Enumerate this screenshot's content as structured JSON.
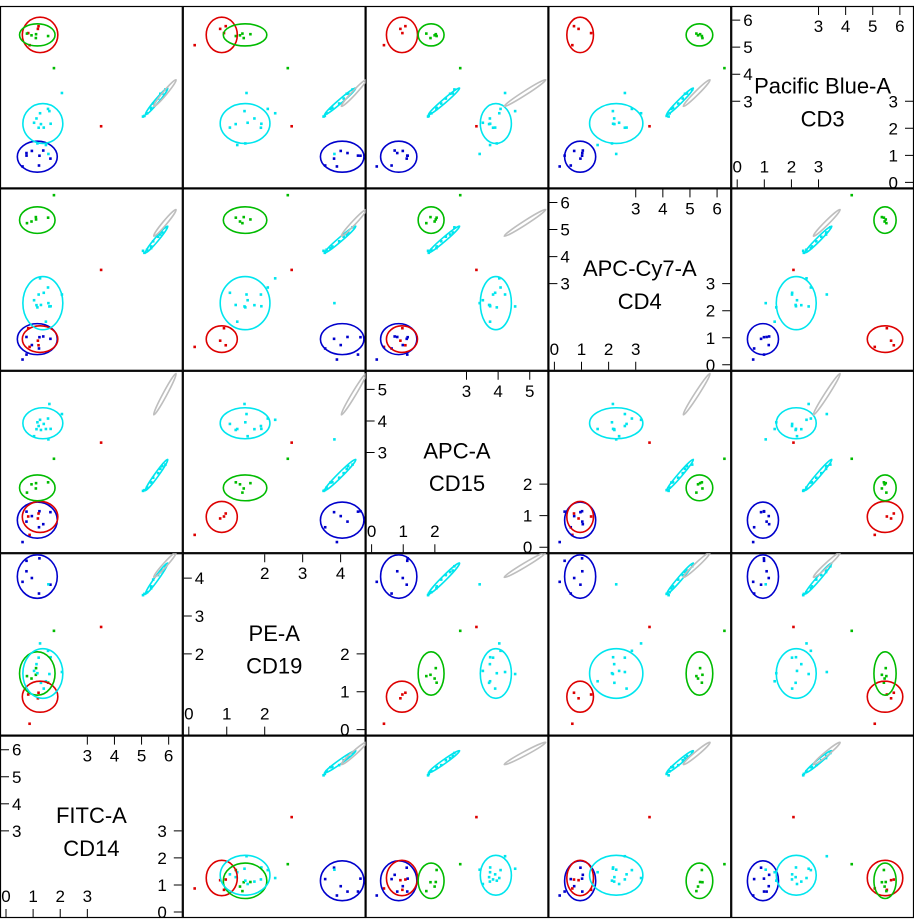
{
  "chart_data": {
    "type": "scatter",
    "subtype": "scatterplot-matrix",
    "variables": [
      {
        "channel": "FITC-A",
        "marker": "CD14",
        "range": [
          0,
          6.3
        ],
        "ticks": [
          0,
          1,
          2,
          3,
          4,
          5,
          6
        ]
      },
      {
        "channel": "PE-A",
        "marker": "CD19",
        "range": [
          0,
          4.5
        ],
        "ticks": [
          0,
          1,
          2,
          3,
          4
        ]
      },
      {
        "channel": "APC-A",
        "marker": "CD15",
        "range": [
          0,
          5.4
        ],
        "ticks": [
          0,
          1,
          2,
          3,
          4,
          5
        ]
      },
      {
        "channel": "APC-Cy7-A",
        "marker": "CD4",
        "range": [
          0,
          6.3
        ],
        "ticks": [
          0,
          1,
          2,
          3,
          4,
          5,
          6
        ]
      },
      {
        "channel": "Pacific Blue-A",
        "marker": "CD3",
        "range": [
          0,
          6.3
        ],
        "ticks": [
          0,
          1,
          2,
          3,
          4,
          5,
          6
        ]
      }
    ],
    "populations": [
      {
        "color": "#0000CC",
        "means": [
          1.2,
          4.0,
          0.9,
          1.0,
          1.0
        ],
        "sd": [
          0.45,
          0.35,
          0.35,
          0.35,
          0.35
        ],
        "count": 8,
        "rho": 0.2
      },
      {
        "color": "#DD0000",
        "means": [
          1.3,
          0.9,
          1.0,
          1.0,
          5.4
        ],
        "sd": [
          0.4,
          0.25,
          0.3,
          0.3,
          0.4
        ],
        "count": 4,
        "rho": 0.8
      },
      {
        "color": "#00BB00",
        "means": [
          1.2,
          1.5,
          1.9,
          5.3,
          5.4
        ],
        "sd": [
          0.4,
          0.35,
          0.25,
          0.3,
          0.25
        ],
        "count": 5,
        "rho": 0.8
      },
      {
        "color": "#00E5EE",
        "means": [
          1.4,
          1.5,
          3.9,
          2.3,
          2.2
        ],
        "sd": [
          0.45,
          0.4,
          0.3,
          0.6,
          0.45
        ],
        "count": 12,
        "rho": 0.5
      },
      {
        "color": "#00E5EE",
        "means": [
          5.5,
          3.95,
          2.3,
          4.6,
          3.0
        ],
        "sd": [
          0.25,
          0.25,
          0.3,
          0.3,
          0.3
        ],
        "count": 10,
        "rho": 0.99
      },
      {
        "color": "#BEBEBE",
        "means": [
          5.8,
          4.3,
          4.8,
          5.2,
          3.3
        ],
        "sd": [
          0.25,
          0.2,
          0.4,
          0.3,
          0.3
        ],
        "count": 0,
        "rho": 0.99
      }
    ],
    "outliers": [
      {
        "color": "#DD0000",
        "values": [
          3.5,
          2.7,
          3.3,
          3.5,
          2.1
        ]
      },
      {
        "color": "#00BB00",
        "values": [
          1.8,
          2.6,
          2.8,
          6.2,
          4.2
        ]
      },
      {
        "color": "#00E5EE",
        "values": [
          1.6,
          3.8,
          3.4,
          2.3,
          1.1
        ]
      }
    ],
    "grid": false,
    "legend": "none"
  }
}
